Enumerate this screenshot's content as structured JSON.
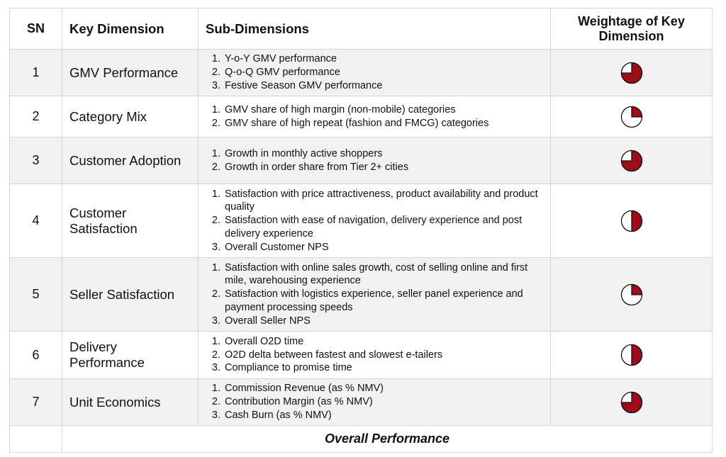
{
  "header": {
    "sn": "SN",
    "key_dimension": "Key Dimension",
    "sub_dimensions": "Sub-Dimensions",
    "weightage": "Weightage of Key Dimension"
  },
  "rows": [
    {
      "sn": 1,
      "key_dimension": "GMV Performance",
      "sub_dimensions": [
        "Y-o-Y GMV performance",
        "Q-o-Q GMV performance",
        "Festive Season GMV performance"
      ],
      "weightage": 75
    },
    {
      "sn": 2,
      "key_dimension": "Category Mix",
      "sub_dimensions": [
        "GMV share of high margin (non-mobile) categories",
        "GMV share of high repeat (fashion and FMCG) categories"
      ],
      "weightage": 25
    },
    {
      "sn": 3,
      "key_dimension": "Customer Adoption",
      "sub_dimensions": [
        "Growth in monthly active shoppers",
        "Growth in order share from Tier 2+ cities"
      ],
      "weightage": 75
    },
    {
      "sn": 4,
      "key_dimension": "Customer Satisfaction",
      "sub_dimensions": [
        "Satisfaction with price attractiveness, product availability and product quality",
        "Satisfaction with ease of navigation, delivery experience and post delivery experience",
        "Overall Customer NPS"
      ],
      "weightage": 50
    },
    {
      "sn": 5,
      "key_dimension": "Seller Satisfaction",
      "sub_dimensions": [
        "Satisfaction with online sales growth, cost of selling online and first mile, warehousing experience",
        "Satisfaction with logistics experience, seller panel experience and payment processing speeds",
        "Overall Seller NPS"
      ],
      "weightage": 25
    },
    {
      "sn": 6,
      "key_dimension": "Delivery Performance",
      "sub_dimensions": [
        "Overall O2D time",
        "O2D delta between fastest and slowest e-tailers",
        "Compliance to promise time"
      ],
      "weightage": 50
    },
    {
      "sn": 7,
      "key_dimension": "Unit Economics",
      "sub_dimensions": [
        "Commission Revenue (as % NMV)",
        "Contribution Margin (as % NMV)",
        "Cash Burn (as % NMV)"
      ],
      "weightage": 75
    }
  ],
  "footer": "Overall Performance"
}
